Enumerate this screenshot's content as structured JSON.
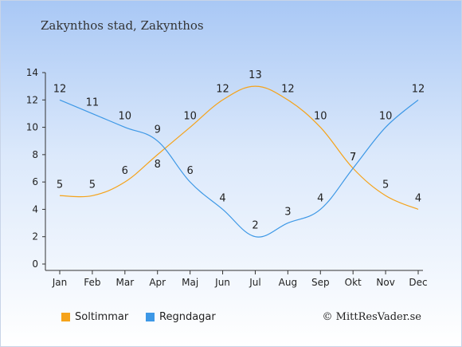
{
  "title": "Zakynthos stad, Zakynthos",
  "copyright": "© MittResVader.se",
  "colors": {
    "sun": "#f5a31a",
    "rain": "#3d98e6",
    "axis": "#333333"
  },
  "chart_data": {
    "type": "line",
    "categories": [
      "Jan",
      "Feb",
      "Mar",
      "Apr",
      "Maj",
      "Jun",
      "Jul",
      "Aug",
      "Sep",
      "Okt",
      "Nov",
      "Dec"
    ],
    "series": [
      {
        "name": "Soltimmar",
        "values": [
          5,
          5,
          6,
          8,
          10,
          12,
          13,
          12,
          10,
          7,
          5,
          4
        ]
      },
      {
        "name": "Regndagar",
        "values": [
          12,
          11,
          10,
          9,
          6,
          4,
          2,
          3,
          4,
          7,
          10,
          12
        ]
      }
    ],
    "ylim": [
      0,
      14
    ],
    "yticks": [
      0,
      2,
      4,
      6,
      8,
      10,
      12,
      14
    ],
    "grid": false,
    "legend": "bottom-left"
  }
}
